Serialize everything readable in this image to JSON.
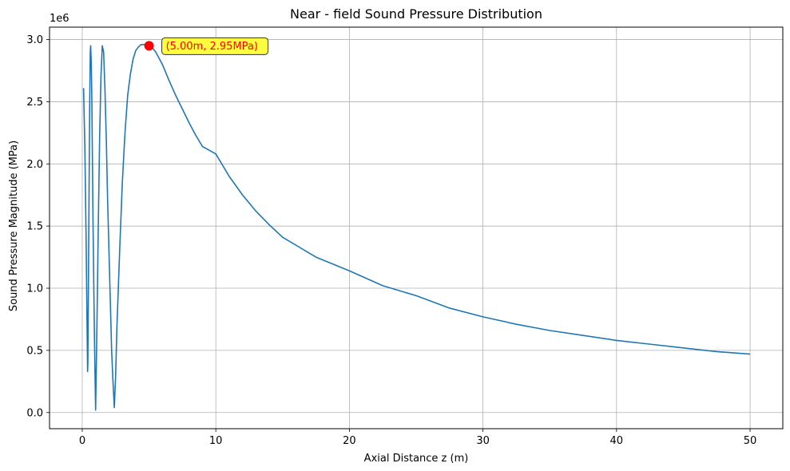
{
  "chart_data": {
    "type": "line",
    "title": "Near - field Sound Pressure Distribution",
    "xlabel": "Axial Distance z (m)",
    "ylabel": "Sound Pressure Magnitude (MPa)",
    "y_offset_label": "1e6",
    "xlim": [
      -2.45,
      52.45
    ],
    "ylim": [
      -0.13,
      3.1
    ],
    "x_ticks": [
      0,
      10,
      20,
      30,
      40,
      50
    ],
    "x_tick_labels": [
      "0",
      "10",
      "20",
      "30",
      "40",
      "50"
    ],
    "y_ticks": [
      0.0,
      0.5,
      1.0,
      1.5,
      2.0,
      2.5,
      3.0
    ],
    "y_tick_labels": [
      "0.0",
      "0.5",
      "1.0",
      "1.5",
      "2.0",
      "2.5",
      "3.0"
    ],
    "grid": true,
    "series": [
      {
        "color": "#1f77b4",
        "x": [
          0.1,
          0.2,
          0.3,
          0.35,
          0.4,
          0.42,
          0.5,
          0.55,
          0.6,
          0.63,
          0.68,
          0.72,
          0.8,
          0.9,
          0.95,
          1.0,
          1.05,
          1.1,
          1.2,
          1.3,
          1.4,
          1.5,
          1.6,
          1.7,
          1.8,
          1.9,
          2.0,
          2.1,
          2.2,
          2.3,
          2.4,
          2.5,
          2.6,
          2.8,
          3.0,
          3.2,
          3.4,
          3.6,
          3.8,
          4.0,
          4.2,
          4.4,
          4.6,
          4.8,
          5.0,
          5.2,
          5.5,
          6.0,
          6.5,
          7.0,
          7.5,
          8.0,
          8.5,
          9.0,
          10.0,
          11.0,
          12.0,
          13.0,
          14.0,
          15.0,
          17.5,
          20.0,
          22.5,
          25.0,
          27.5,
          30.0,
          32.5,
          35.0,
          37.5,
          40.0,
          42.5,
          45.0,
          47.5,
          50.0
        ],
        "values": [
          2.61,
          2.1,
          1.3,
          0.8,
          0.33,
          0.4,
          1.6,
          2.4,
          2.9,
          2.95,
          2.8,
          2.5,
          1.6,
          0.7,
          0.35,
          0.02,
          0.35,
          0.7,
          1.5,
          2.2,
          2.7,
          2.95,
          2.9,
          2.6,
          2.2,
          1.7,
          1.3,
          0.9,
          0.5,
          0.25,
          0.04,
          0.3,
          0.7,
          1.3,
          1.85,
          2.25,
          2.55,
          2.72,
          2.84,
          2.91,
          2.94,
          2.96,
          2.96,
          2.96,
          2.95,
          2.94,
          2.9,
          2.8,
          2.67,
          2.55,
          2.44,
          2.33,
          2.23,
          2.14,
          2.08,
          1.9,
          1.75,
          1.62,
          1.51,
          1.41,
          1.25,
          1.14,
          1.02,
          0.94,
          0.84,
          0.77,
          0.71,
          0.66,
          0.62,
          0.58,
          0.55,
          0.52,
          0.49,
          0.47
        ]
      }
    ],
    "annotation": {
      "text": "(5.00m, 2.95MPa)",
      "x": 5.0,
      "y": 2.95,
      "marker_color": "#ff0000",
      "text_color": "#ff0000",
      "box_color": "#ffff40"
    }
  }
}
